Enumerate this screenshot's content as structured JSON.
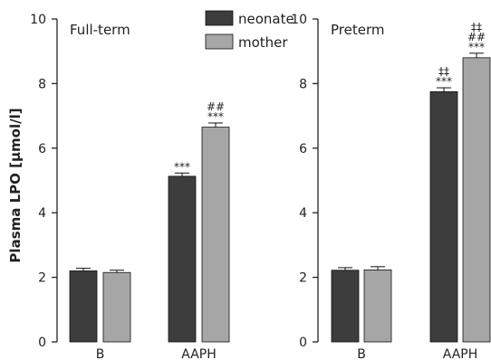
{
  "chart_data": {
    "type": "bar",
    "ylabel": "Plasma LPO [µmol/l]",
    "ylim": [
      0,
      10
    ],
    "yticks": [
      0,
      2,
      4,
      6,
      8,
      10
    ],
    "categories": [
      "B",
      "AAPH"
    ],
    "legend": {
      "position": "top-center"
    },
    "series_colors": {
      "neonate": "#3d3d3d",
      "mother": "#a6a6a6"
    },
    "panels": [
      {
        "title": "Full-term",
        "series": [
          {
            "name": "neonate",
            "values": [
              2.2,
              5.13
            ],
            "errors": [
              0.08,
              0.1
            ]
          },
          {
            "name": "mother",
            "values": [
              2.15,
              6.65
            ],
            "errors": [
              0.07,
              0.13
            ]
          }
        ],
        "annotations": [
          {
            "series": "neonate",
            "category": "AAPH",
            "lines": [
              "***"
            ]
          },
          {
            "series": "mother",
            "category": "AAPH",
            "lines": [
              "##",
              "***"
            ]
          }
        ]
      },
      {
        "title": "Preterm",
        "series": [
          {
            "name": "neonate",
            "values": [
              2.22,
              7.75
            ],
            "errors": [
              0.08,
              0.12
            ]
          },
          {
            "name": "mother",
            "values": [
              2.23,
              8.8
            ],
            "errors": [
              0.1,
              0.14
            ]
          }
        ],
        "annotations": [
          {
            "series": "neonate",
            "category": "AAPH",
            "lines": [
              "‡‡",
              "***"
            ]
          },
          {
            "series": "mother",
            "category": "AAPH",
            "lines": [
              "‡‡",
              "##",
              "***"
            ]
          }
        ]
      }
    ]
  }
}
